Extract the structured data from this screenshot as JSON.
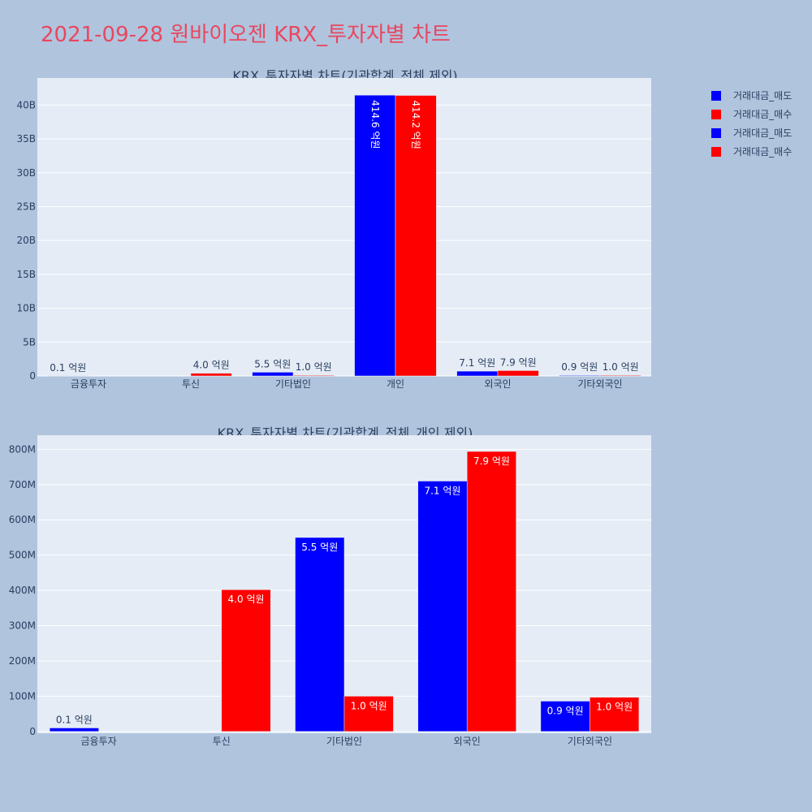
{
  "page": {
    "title": "2021-09-28 원바이오젠 KRX_투자자별 차트"
  },
  "colors": {
    "sell": "#0000ff",
    "buy": "#ff0000",
    "plot_bg": "#e5ecf6",
    "page_bg": "#b0c4de"
  },
  "legend": {
    "items": [
      {
        "label": "거래대금_매도",
        "color": "#0000ff"
      },
      {
        "label": "거래대금_매수",
        "color": "#ff0000"
      },
      {
        "label": "거래대금_매도",
        "color": "#0000ff"
      },
      {
        "label": "거래대금_매수",
        "color": "#ff0000"
      }
    ]
  },
  "chart_data": [
    {
      "type": "bar",
      "title": "KRX_투자자별 차트(기관합계_전체 제외)",
      "categories": [
        "금융투자",
        "투신",
        "기타법인",
        "개인",
        "외국인",
        "기타외국인"
      ],
      "series": [
        {
          "name": "거래대금_매도",
          "color": "#0000ff",
          "values": [
            10000000,
            0,
            550000000,
            41460000000,
            710000000,
            90000000
          ],
          "labels": [
            "0.1 억원",
            "",
            "5.5 억원",
            "414.6 억원",
            "7.1 억원",
            "0.9 억원"
          ]
        },
        {
          "name": "거래대금_매수",
          "color": "#ff0000",
          "values": [
            0,
            400000000,
            100000000,
            41420000000,
            790000000,
            100000000
          ],
          "labels": [
            "",
            "4.0 억원",
            "1.0 억원",
            "414.2 억원",
            "7.9 억원",
            "1.0 억원"
          ]
        }
      ],
      "ylim": [
        0,
        44000000000
      ],
      "yticks": [
        0,
        5000000000,
        10000000000,
        15000000000,
        20000000000,
        25000000000,
        30000000000,
        35000000000,
        40000000000
      ],
      "ytick_labels": [
        "0",
        "5B",
        "10B",
        "15B",
        "20B",
        "25B",
        "30B",
        "35B",
        "40B"
      ],
      "grid": true
    },
    {
      "type": "bar",
      "title": "KRX_투자자별 차트(기관합계_전체_개인 제외)",
      "categories": [
        "금융투자",
        "투신",
        "기타법인",
        "외국인",
        "기타외국인"
      ],
      "series": [
        {
          "name": "거래대금_매도",
          "color": "#0000ff",
          "values": [
            10000000,
            0,
            550000000,
            710000000,
            86000000
          ],
          "labels": [
            "0.1 억원",
            "",
            "5.5 억원",
            "7.1 억원",
            "0.9 억원"
          ]
        },
        {
          "name": "거래대금_매수",
          "color": "#ff0000",
          "values": [
            0,
            402000000,
            100000000,
            794000000,
            97000000
          ],
          "labels": [
            "",
            "4.0 억원",
            "1.0 억원",
            "7.9 억원",
            "1.0 억원"
          ]
        }
      ],
      "ylim": [
        -5000000,
        840000000
      ],
      "yticks": [
        0,
        100000000,
        200000000,
        300000000,
        400000000,
        500000000,
        600000000,
        700000000,
        800000000
      ],
      "ytick_labels": [
        "0",
        "100M",
        "200M",
        "300M",
        "400M",
        "500M",
        "600M",
        "700M",
        "800M"
      ],
      "grid": true
    }
  ]
}
